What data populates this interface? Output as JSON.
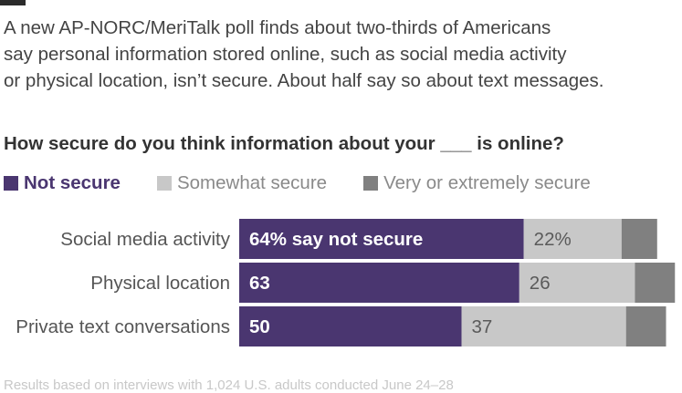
{
  "intro": [
    "A new AP-NORC/MeriTalk poll finds about two-thirds of Americans",
    "say personal information stored online, such as social media activity",
    "or physical location, isn’t secure. About half say so about text messages."
  ],
  "chart_data": {
    "type": "bar",
    "orientation": "horizontal",
    "stacked": true,
    "title": "How secure do you think information about your ___ is online?",
    "categories": [
      "Social media activity",
      "Physical location",
      "Private text conversations"
    ],
    "series": [
      {
        "name": "Not secure",
        "color": "#4a3670",
        "values": [
          64,
          63,
          50
        ],
        "labels": [
          "64% say not secure",
          "63",
          "50"
        ]
      },
      {
        "name": "Somewhat secure",
        "color": "#c8c8c8",
        "values": [
          22,
          26,
          37
        ],
        "labels": [
          "22%",
          "26",
          "37"
        ]
      },
      {
        "name": "Very or extremely secure",
        "color": "#808080",
        "values": [
          8,
          9,
          9
        ],
        "labels": [
          "",
          "",
          ""
        ]
      }
    ],
    "xlim": [
      0,
      100
    ],
    "legend": "top"
  },
  "footnote": "Results based on interviews with 1,024 U.S. adults conducted June 24–28"
}
